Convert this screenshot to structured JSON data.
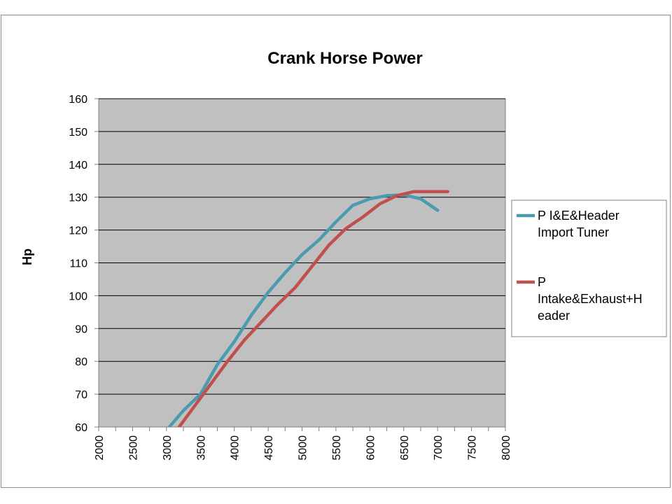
{
  "chart_data": {
    "type": "line",
    "title": "Crank Horse Power",
    "xlabel": "",
    "ylabel": "Hp",
    "xlim": [
      2000,
      8000
    ],
    "ylim": [
      60,
      160
    ],
    "x_ticks": [
      "2000",
      "2500",
      "3000",
      "3500",
      "4000",
      "4500",
      "5000",
      "5500",
      "6000",
      "6500",
      "7000",
      "7500",
      "8000"
    ],
    "y_ticks": [
      "60",
      "70",
      "80",
      "90",
      "100",
      "110",
      "120",
      "130",
      "140",
      "150",
      "160"
    ],
    "grid": "horizontal",
    "legend_position": "right",
    "plot_background": "#c0c0c0",
    "series": [
      {
        "name": "P I&E&Header Import Tuner",
        "legend_lines": [
          "P I&E&Header",
          "Import Tuner"
        ],
        "color": "#4a9bb0",
        "x": [
          3000,
          3250,
          3500,
          3750,
          4000,
          4250,
          4500,
          4750,
          5000,
          5250,
          5500,
          5750,
          6000,
          6250,
          6500,
          6750,
          7000
        ],
        "y": [
          59,
          65,
          70,
          79,
          86,
          94,
          101,
          107,
          112.5,
          117,
          122.5,
          127.5,
          129.5,
          130.5,
          130.7,
          129.5,
          126
        ]
      },
      {
        "name": "P Intake&Exhaust+Header",
        "legend_lines": [
          "P",
          "Intake&Exhaust+H",
          "eader"
        ],
        "color": "#c0504d",
        "x": [
          3150,
          3400,
          3650,
          3900,
          4150,
          4400,
          4650,
          4900,
          5150,
          5400,
          5650,
          5900,
          6150,
          6400,
          6650,
          6900,
          7150
        ],
        "y": [
          59,
          66,
          73,
          80,
          86.5,
          92,
          97.5,
          102.5,
          109,
          115.5,
          120.5,
          124,
          128,
          130.5,
          131.7,
          131.7,
          131.7
        ]
      }
    ]
  }
}
